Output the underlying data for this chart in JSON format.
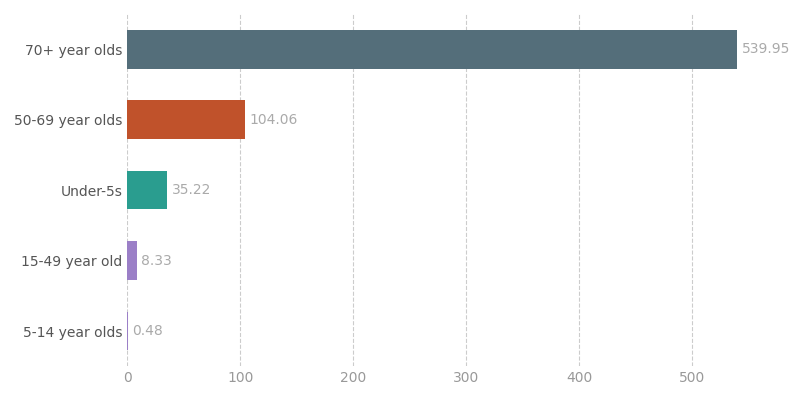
{
  "categories": [
    "5-14 year olds",
    "15-49 year old",
    "Under-5s",
    "50-69 year olds",
    "70+ year olds"
  ],
  "values": [
    0.48,
    8.33,
    35.22,
    104.06,
    539.95
  ],
  "bar_colors": [
    "#9b7fc7",
    "#9b7fc7",
    "#2a9d8f",
    "#c0522b",
    "#546e7a"
  ],
  "label_color": "#aaaaaa",
  "background_color": "#ffffff",
  "grid_color": "#cccccc",
  "xlim": [
    0,
    580
  ],
  "bar_height": 0.55,
  "label_fontsize": 10,
  "tick_fontsize": 10,
  "ytick_fontsize": 10,
  "ytick_color": "#555555",
  "xtick_color": "#999999"
}
